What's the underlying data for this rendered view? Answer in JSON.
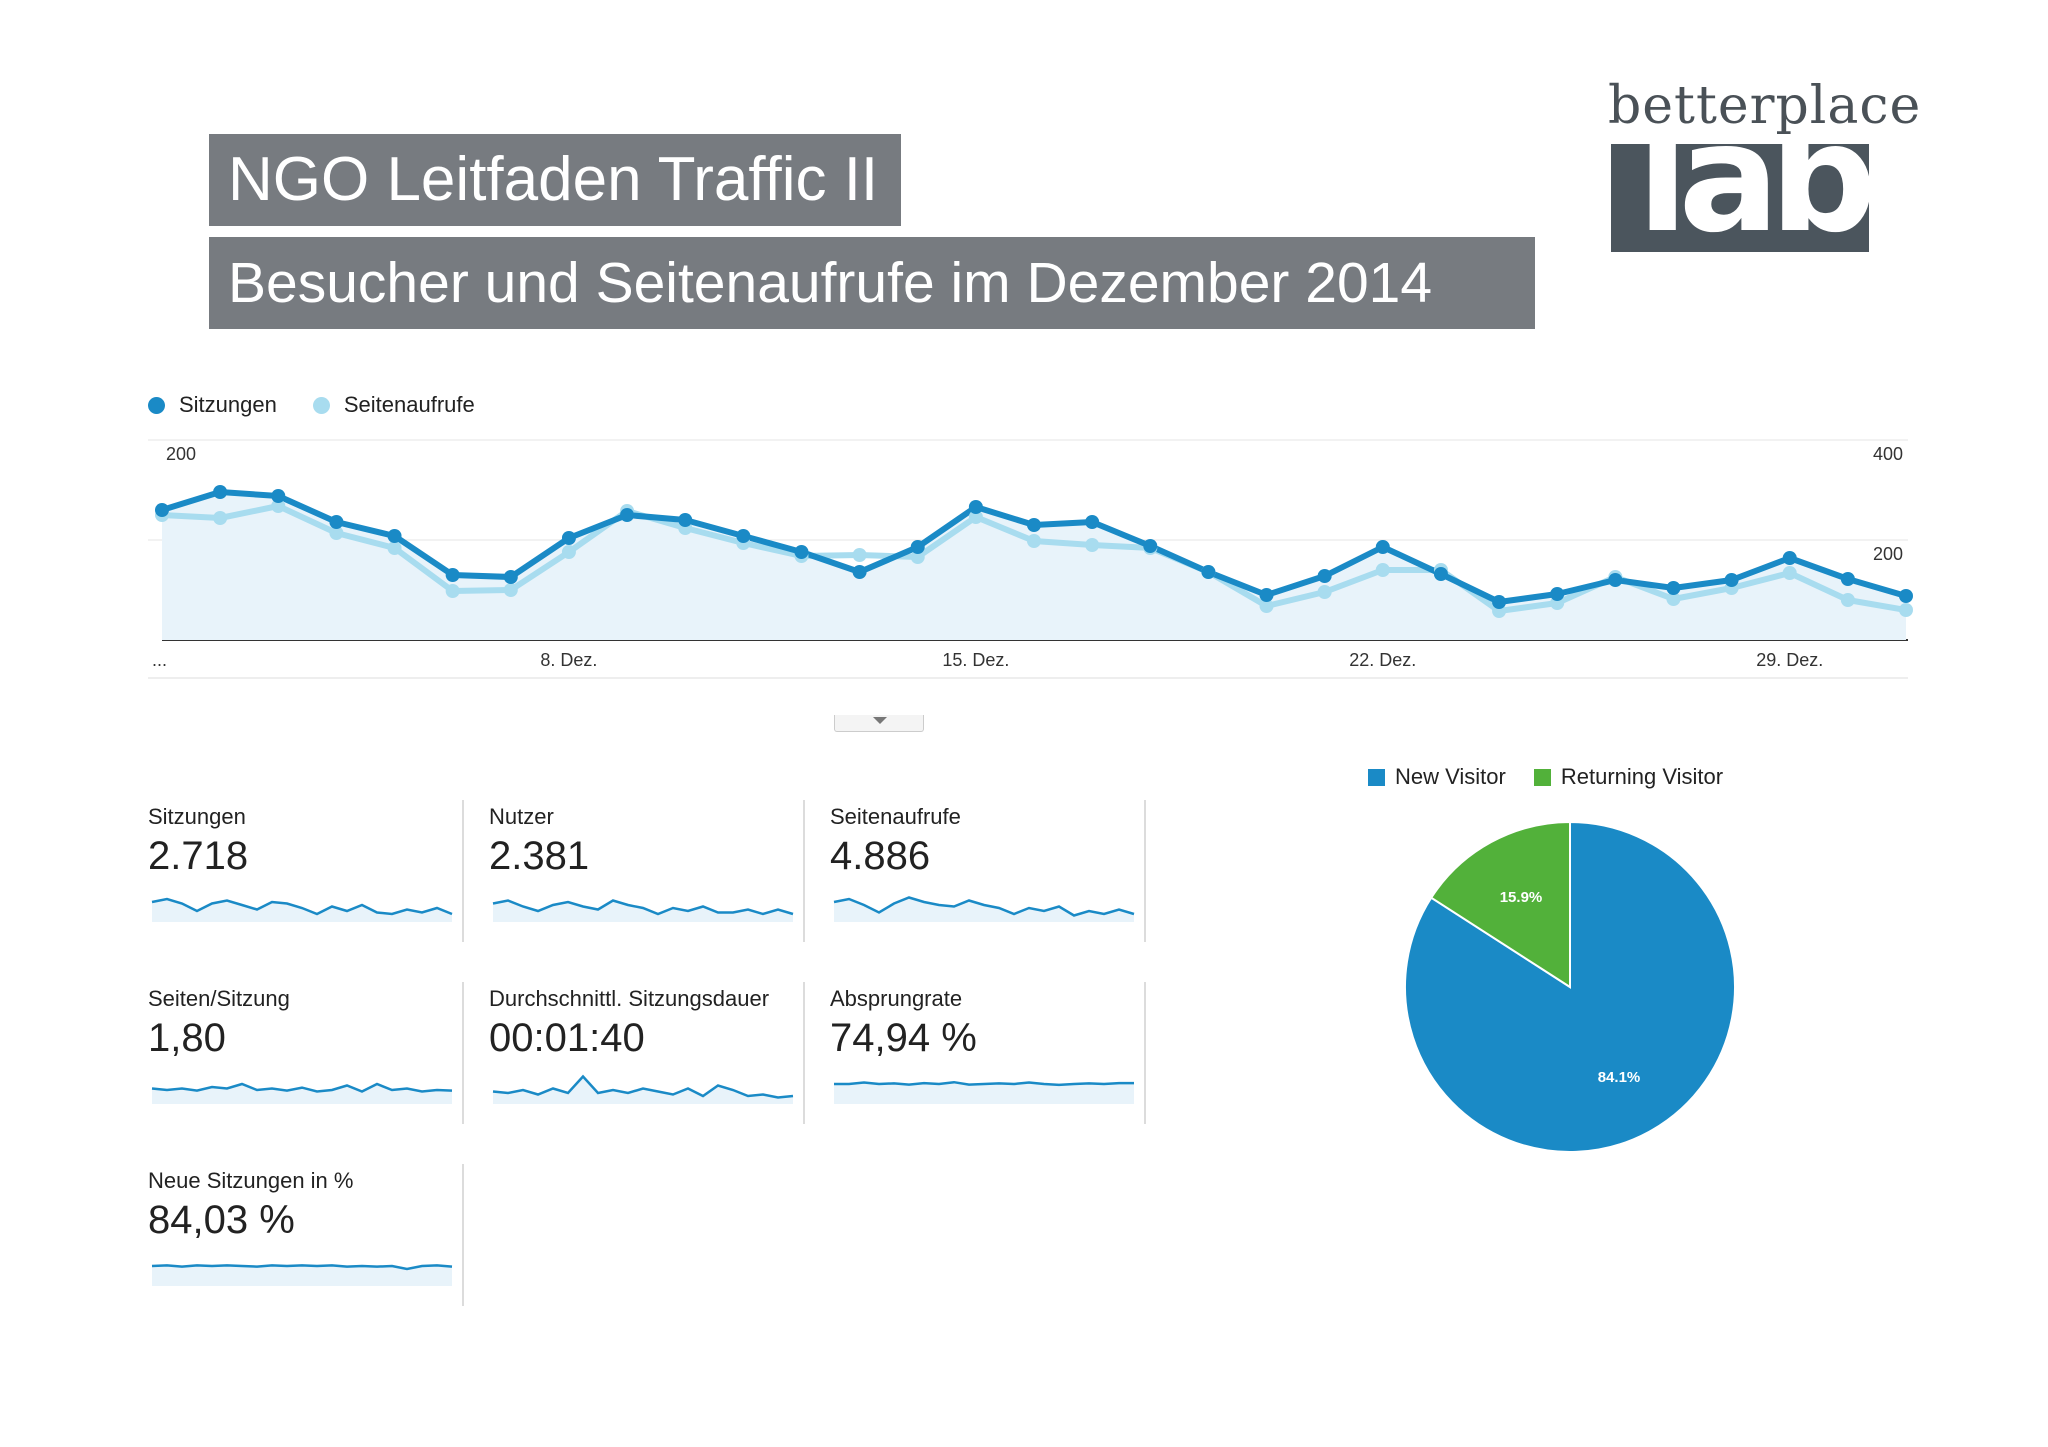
{
  "header": {
    "title": "NGO Leitfaden Traffic II",
    "subtitle": "Besucher und Seitenaufrufe im Dezember 2014"
  },
  "logo": {
    "wordmark": "betterplace",
    "lab": "lab"
  },
  "colors": {
    "sessions": "#1a8ac6",
    "pageviews": "#a8dcef",
    "area_fill": "#e8f3fa",
    "new_visitor": "#1a8ac6",
    "returning_visitor": "#52b13a"
  },
  "chart_data": [
    {
      "type": "line",
      "title": "",
      "legend": [
        "Sitzungen",
        "Seitenaufrufe"
      ],
      "legend_position": "top-left",
      "x_tick_labels": [
        "...",
        "8. Dez.",
        "15. Dez.",
        "22. Dez.",
        "29. Dez."
      ],
      "x": [
        "1. Dez.",
        "2. Dez.",
        "3. Dez.",
        "4. Dez.",
        "5. Dez.",
        "6. Dez.",
        "7. Dez.",
        "8. Dez.",
        "9. Dez.",
        "10. Dez.",
        "11. Dez.",
        "12. Dez.",
        "13. Dez.",
        "14. Dez.",
        "15. Dez.",
        "16. Dez.",
        "17. Dez.",
        "18. Dez.",
        "19. Dez.",
        "20. Dez.",
        "21. Dez.",
        "22. Dez.",
        "23. Dez.",
        "24. Dez.",
        "25. Dez.",
        "26. Dez.",
        "27. Dez.",
        "28. Dez.",
        "29. Dez.",
        "30. Dez.",
        "31. Dez."
      ],
      "y_left_ticks": [
        "200",
        "100"
      ],
      "y_right_ticks": [
        "400",
        "200"
      ],
      "y_left_range": [
        0,
        200
      ],
      "y_right_range": [
        0,
        400
      ],
      "grid": true,
      "series": [
        {
          "name": "Sitzungen",
          "axis": "left",
          "values": [
            130,
            148,
            144,
            118,
            104,
            65,
            63,
            102,
            125,
            120,
            104,
            88,
            68,
            93,
            133,
            115,
            118,
            94,
            68,
            45,
            64,
            93,
            66,
            38,
            46,
            60,
            52,
            60,
            82,
            61,
            44
          ]
        },
        {
          "name": "Seitenaufrufe",
          "axis": "right",
          "values": [
            250,
            244,
            268,
            214,
            184,
            98,
            100,
            176,
            258,
            224,
            194,
            168,
            170,
            166,
            246,
            198,
            190,
            184,
            136,
            68,
            96,
            140,
            140,
            58,
            74,
            126,
            82,
            104,
            134,
            80,
            60
          ]
        }
      ]
    },
    {
      "type": "pie",
      "title": "",
      "legend": [
        "New Visitor",
        "Returning Visitor"
      ],
      "legend_position": "top",
      "series": [
        {
          "values": [
            84.1,
            15.9
          ]
        }
      ],
      "slice_labels": [
        "84.1%",
        "15.9%"
      ]
    }
  ],
  "metrics": [
    {
      "label": "Sitzungen",
      "value": "2.718",
      "spark": [
        0.6,
        0.7,
        0.55,
        0.3,
        0.55,
        0.65,
        0.5,
        0.35,
        0.6,
        0.55,
        0.4,
        0.2,
        0.45,
        0.3,
        0.5,
        0.25,
        0.2,
        0.35,
        0.25,
        0.4,
        0.2
      ]
    },
    {
      "label": "Nutzer",
      "value": "2.381",
      "spark": [
        0.55,
        0.65,
        0.45,
        0.3,
        0.5,
        0.6,
        0.45,
        0.35,
        0.65,
        0.5,
        0.4,
        0.2,
        0.4,
        0.3,
        0.45,
        0.25,
        0.25,
        0.35,
        0.2,
        0.35,
        0.2
      ]
    },
    {
      "label": "Seitenaufrufe",
      "value": "4.886",
      "spark": [
        0.6,
        0.7,
        0.5,
        0.25,
        0.55,
        0.75,
        0.6,
        0.5,
        0.45,
        0.65,
        0.5,
        0.4,
        0.2,
        0.4,
        0.3,
        0.45,
        0.15,
        0.3,
        0.2,
        0.35,
        0.2
      ]
    },
    {
      "label": "Seiten/Sitzung",
      "value": "1,80",
      "spark": [
        0.45,
        0.4,
        0.45,
        0.38,
        0.5,
        0.45,
        0.6,
        0.4,
        0.45,
        0.38,
        0.48,
        0.35,
        0.4,
        0.55,
        0.35,
        0.6,
        0.4,
        0.45,
        0.35,
        0.4,
        0.38
      ]
    },
    {
      "label": "Durchschnittl. Sitzungsdauer",
      "value": "00:01:40",
      "spark": [
        0.35,
        0.3,
        0.4,
        0.25,
        0.45,
        0.3,
        0.85,
        0.3,
        0.4,
        0.3,
        0.45,
        0.35,
        0.25,
        0.45,
        0.2,
        0.55,
        0.4,
        0.2,
        0.25,
        0.15,
        0.2
      ]
    },
    {
      "label": "Absprungrate",
      "value": "74,94 %",
      "spark": [
        0.6,
        0.6,
        0.65,
        0.6,
        0.62,
        0.58,
        0.63,
        0.6,
        0.66,
        0.58,
        0.6,
        0.62,
        0.6,
        0.65,
        0.6,
        0.57,
        0.6,
        0.62,
        0.6,
        0.63,
        0.63
      ]
    },
    {
      "label": "Neue Sitzungen in %",
      "value": "84,03 %",
      "spark": [
        0.6,
        0.62,
        0.58,
        0.62,
        0.6,
        0.62,
        0.6,
        0.58,
        0.62,
        0.6,
        0.62,
        0.6,
        0.62,
        0.58,
        0.6,
        0.58,
        0.6,
        0.5,
        0.6,
        0.62,
        0.58
      ]
    }
  ]
}
